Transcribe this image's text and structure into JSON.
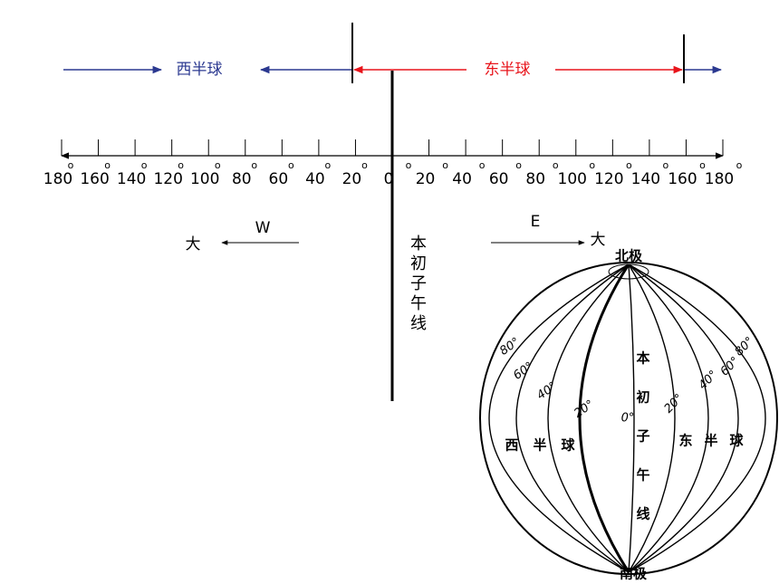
{
  "hemispheres": {
    "west": "西半球",
    "east": "东半球"
  },
  "scale": {
    "labels": [
      "180",
      "160",
      "140",
      "120",
      "100",
      "80",
      "60",
      "40",
      "20",
      "0",
      "20",
      "40",
      "60",
      "80",
      "100",
      "120",
      "140",
      "160",
      "180"
    ],
    "degree": "o"
  },
  "directions": {
    "west": "W",
    "east": "E",
    "larger": "大"
  },
  "prime_meridian": [
    "本",
    "初",
    "子",
    "午",
    "线"
  ],
  "globe": {
    "north_pole": "北极",
    "south_pole": "南极",
    "west_latitudes": [
      "80°",
      "60°",
      "40°",
      "20°"
    ],
    "zero": "0°",
    "east_latitudes": [
      "20°",
      "40°",
      "60°",
      "80°"
    ],
    "west_hemisphere": [
      "西",
      "半",
      "球"
    ],
    "east_hemisphere": [
      "东",
      "半",
      "球"
    ],
    "prime_meridian": [
      "本",
      "初",
      "子",
      "午",
      "线"
    ]
  }
}
